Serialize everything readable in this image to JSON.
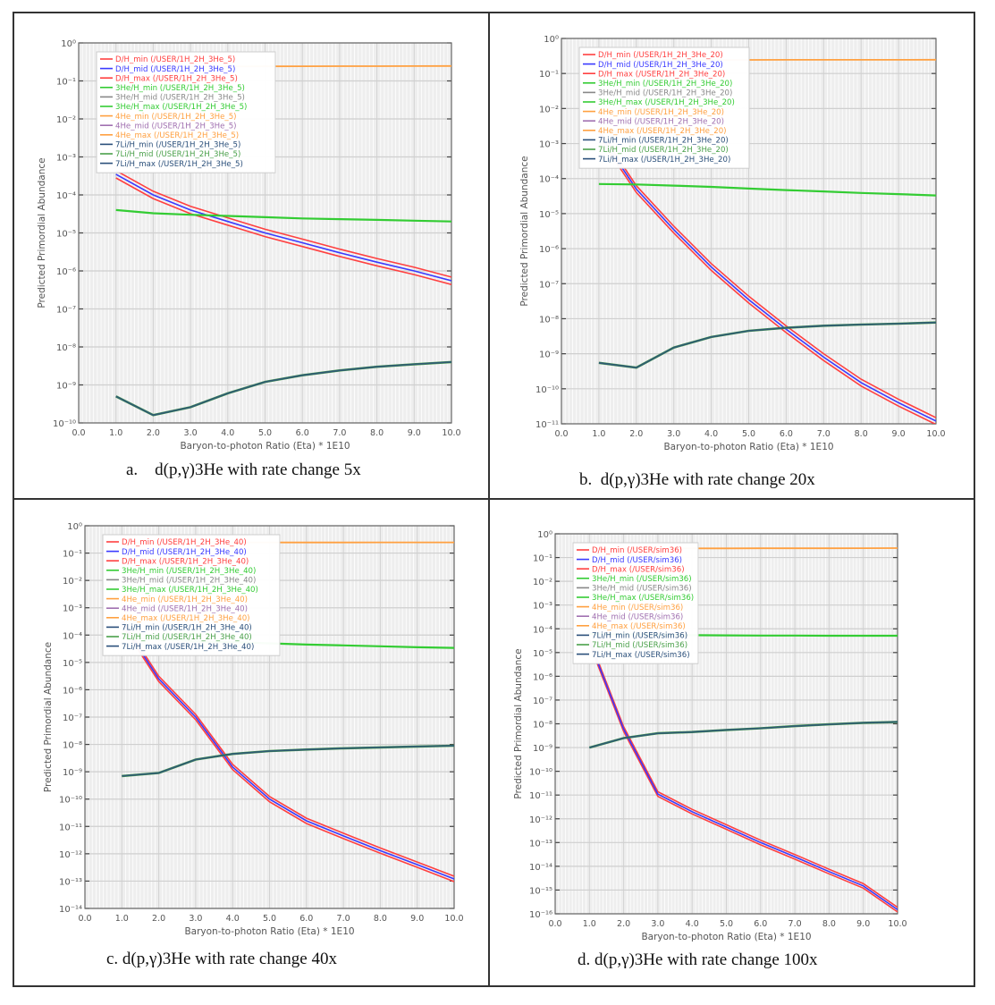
{
  "figure": {
    "captions": [
      "a.    d(p,γ)3He with rate change 5x",
      "b.  d(p,γ)3He with rate change 20x",
      "c. d(p,γ)3He with rate change 40x",
      "d. d(p,γ)3He with rate change 100x"
    ]
  },
  "colors": {
    "dh_min": "#ff4040",
    "dh_mid": "#3a3aff",
    "dh_max": "#ff4040",
    "he3_min": "#33cc33",
    "he3_mid": "#888888",
    "he3_max": "#33cc33",
    "he4_min": "#ffa040",
    "he4_mid": "#a070b0",
    "he4_max": "#ffa040",
    "li7_min": "#2a4f7a",
    "li7_mid": "#4aa04a",
    "li7_max": "#2a4f7a",
    "grid_bg": "#eeeeee"
  },
  "chart_data": [
    {
      "type": "line",
      "yscale": "log",
      "title": "d(p,γ)3He with rate change 5x",
      "xlabel": "Baryon-to-photon Ratio (Eta) * 1E10",
      "ylabel": "Predicted Primordial Abundance",
      "xlim": [
        0,
        10
      ],
      "ylim_exp": [
        -10,
        0
      ],
      "xticks": [
        "0.0",
        "1.0",
        "2.0",
        "3.0",
        "4.0",
        "5.0",
        "6.0",
        "7.0",
        "8.0",
        "9.0",
        "10.0"
      ],
      "yticks": [
        "10⁰",
        "10⁻¹",
        "10⁻²",
        "10⁻³",
        "10⁻⁴",
        "10⁻⁵",
        "10⁻⁶",
        "10⁻⁷",
        "10⁻⁸",
        "10⁻⁹",
        "10⁻¹⁰"
      ],
      "legend_position": "top-left",
      "legend": [
        "D/H_min (/USER/1H_2H_3He_5)",
        "D/H_mid (/USER/1H_2H_3He_5)",
        "D/H_max (/USER/1H_2H_3He_5)",
        "3He/H_min (/USER/1H_2H_3He_5)",
        "3He/H_mid (/USER/1H_2H_3He_5)",
        "3He/H_max (/USER/1H_2H_3He_5)",
        "4He_min (/USER/1H_2H_3He_5)",
        "4He_mid (/USER/1H_2H_3He_5)",
        "4He_max (/USER/1H_2H_3He_5)",
        "7Li/H_min (/USER/1H_2H_3He_5)",
        "7Li/H_mid (/USER/1H_2H_3He_5)",
        "7Li/H_max (/USER/1H_2H_3He_5)"
      ],
      "x": [
        1,
        2,
        3,
        4,
        5,
        6,
        7,
        8,
        9,
        10
      ],
      "series": [
        {
          "name": "D/H",
          "values": [
            0.00035,
            0.0001,
            4e-05,
            2e-05,
            1e-05,
            5.5e-06,
            3e-06,
            1.7e-06,
            1e-06,
            5.5e-07
          ]
        },
        {
          "name": "3He/H",
          "values": [
            4e-05,
            3.3e-05,
            3e-05,
            2.8e-05,
            2.6e-05,
            2.4e-05,
            2.3e-05,
            2.2e-05,
            2.1e-05,
            2e-05
          ]
        },
        {
          "name": "4He",
          "values": [
            0.23,
            0.235,
            0.238,
            0.24,
            0.242,
            0.243,
            0.244,
            0.245,
            0.246,
            0.247
          ]
        },
        {
          "name": "7Li/H",
          "values": [
            5e-10,
            1.6e-10,
            2.6e-10,
            6e-10,
            1.2e-09,
            1.8e-09,
            2.4e-09,
            3e-09,
            3.5e-09,
            4e-09
          ]
        }
      ]
    },
    {
      "type": "line",
      "yscale": "log",
      "title": "d(p,γ)3He with rate change 20x",
      "xlabel": "Baryon-to-photon Ratio (Eta) * 1E10",
      "ylabel": "Predicted Primordial Abundance",
      "xlim": [
        0,
        10
      ],
      "ylim_exp": [
        -11,
        0
      ],
      "xticks": [
        "0.0",
        "1.0",
        "2.0",
        "3.0",
        "4.0",
        "5.0",
        "6.0",
        "7.0",
        "8.0",
        "9.0",
        "10.0"
      ],
      "yticks": [
        "10⁰",
        "10⁻¹",
        "10⁻²",
        "10⁻³",
        "10⁻⁴",
        "10⁻⁵",
        "10⁻⁶",
        "10⁻⁷",
        "10⁻⁸",
        "10⁻⁹",
        "10⁻¹⁰",
        "10⁻¹¹"
      ],
      "legend_position": "top-left",
      "legend": [
        "D/H_min (/USER/1H_2H_3He_20)",
        "D/H_mid (/USER/1H_2H_3He_20)",
        "D/H_max (/USER/1H_2H_3He_20)",
        "3He/H_min (/USER/1H_2H_3He_20)",
        "3He/H_mid (/USER/1H_2H_3He_20)",
        "3He/H_max (/USER/1H_2H_3He_20)",
        "4He_min (/USER/1H_2H_3He_20)",
        "4He_mid (/USER/1H_2H_3He_20)",
        "4He_max (/USER/1H_2H_3He_20)",
        "7Li/H_min (/USER/1H_2H_3He_20)",
        "7Li/H_mid (/USER/1H_2H_3He_20)",
        "7Li/H_max (/USER/1H_2H_3He_20)"
      ],
      "x": [
        1,
        2,
        3,
        4,
        5,
        6,
        7,
        8,
        9,
        10
      ],
      "series": [
        {
          "name": "D/H",
          "values": [
            0.002,
            5e-05,
            3.5e-06,
            3e-07,
            3.5e-08,
            5e-09,
            8e-10,
            1.5e-10,
            4e-11,
            1.2e-11
          ]
        },
        {
          "name": "3He/H",
          "values": [
            7e-05,
            6.8e-05,
            6.3e-05,
            5.8e-05,
            5.2e-05,
            4.7e-05,
            4.3e-05,
            3.9e-05,
            3.6e-05,
            3.3e-05
          ]
        },
        {
          "name": "4He",
          "values": [
            0.24,
            0.24,
            0.242,
            0.243,
            0.244,
            0.245,
            0.245,
            0.246,
            0.246,
            0.247
          ]
        },
        {
          "name": "7Li/H",
          "values": [
            5.5e-10,
            4e-10,
            1.5e-09,
            3e-09,
            4.5e-09,
            5.5e-09,
            6.3e-09,
            6.8e-09,
            7.2e-09,
            7.8e-09
          ]
        }
      ]
    },
    {
      "type": "line",
      "yscale": "log",
      "title": "d(p,γ)3He with rate change 40x",
      "xlabel": "Baryon-to-photon Ratio (Eta) * 1E10",
      "ylabel": "Predicted Primordial Abundance",
      "xlim": [
        0,
        10
      ],
      "ylim_exp": [
        -14,
        0
      ],
      "xticks": [
        "0.0",
        "1.0",
        "2.0",
        "3.0",
        "4.0",
        "5.0",
        "6.0",
        "7.0",
        "8.0",
        "9.0",
        "10.0"
      ],
      "yticks": [
        "10⁰",
        "10⁻¹",
        "10⁻²",
        "10⁻³",
        "10⁻⁴",
        "10⁻⁵",
        "10⁻⁶",
        "10⁻⁷",
        "10⁻⁸",
        "10⁻⁹",
        "10⁻¹⁰",
        "10⁻¹¹",
        "10⁻¹²",
        "10⁻¹³",
        "10⁻¹⁴"
      ],
      "legend_position": "top-left",
      "legend": [
        "D/H_min (/USER/1H_2H_3He_40)",
        "D/H_mid (/USER/1H_2H_3He_40)",
        "D/H_max (/USER/1H_2H_3He_40)",
        "3He/H_min (/USER/1H_2H_3He_40)",
        "3He/H_mid (/USER/1H_2H_3He_40)",
        "3He/H_max (/USER/1H_2H_3He_40)",
        "4He_min (/USER/1H_2H_3He_40)",
        "4He_mid (/USER/1H_2H_3He_40)",
        "4He_max (/USER/1H_2H_3He_40)",
        "7Li/H_min (/USER/1H_2H_3He_40)",
        "7Li/H_mid (/USER/1H_2H_3He_40)",
        "7Li/H_max (/USER/1H_2H_3He_40)"
      ],
      "x": [
        1,
        2,
        3,
        4,
        5,
        6,
        7,
        8,
        9,
        10
      ],
      "series": [
        {
          "name": "D/H",
          "values": [
            0.0003,
            2.5e-06,
            1e-07,
            1.5e-09,
            1e-10,
            1.6e-11,
            4.5e-12,
            1.3e-12,
            4e-13,
            1.2e-13
          ]
        },
        {
          "name": "3He/H",
          "values": [
            8e-05,
            7e-05,
            6e-05,
            5.5e-05,
            5e-05,
            4.5e-05,
            4.2e-05,
            3.9e-05,
            3.6e-05,
            3.4e-05
          ]
        },
        {
          "name": "4He",
          "values": [
            0.24,
            0.24,
            0.242,
            0.243,
            0.244,
            0.245,
            0.245,
            0.246,
            0.246,
            0.247
          ]
        },
        {
          "name": "7Li/H",
          "values": [
            7e-10,
            9e-10,
            2.8e-09,
            4.5e-09,
            5.7e-09,
            6.5e-09,
            7.2e-09,
            7.8e-09,
            8.4e-09,
            9e-09
          ]
        }
      ]
    },
    {
      "type": "line",
      "yscale": "log",
      "title": "d(p,γ)3He with rate change 100x",
      "xlabel": "Baryon-to-photon Ratio (Eta) * 1E10",
      "ylabel": "Predicted Primordial Abundance",
      "xlim": [
        0,
        10
      ],
      "ylim_exp": [
        -16,
        0
      ],
      "xticks": [
        "0.0",
        "1.0",
        "2.0",
        "3.0",
        "4.0",
        "5.0",
        "6.0",
        "7.0",
        "8.0",
        "9.0",
        "10.0"
      ],
      "yticks": [
        "10⁰",
        "10⁻¹",
        "10⁻²",
        "10⁻³",
        "10⁻⁴",
        "10⁻⁵",
        "10⁻⁶",
        "10⁻⁷",
        "10⁻⁸",
        "10⁻⁹",
        "10⁻¹⁰",
        "10⁻¹¹",
        "10⁻¹²",
        "10⁻¹³",
        "10⁻¹⁴",
        "10⁻¹⁵",
        "10⁻¹⁶"
      ],
      "legend_position": "top-left",
      "legend": [
        "D/H_min (/USER/sim36)",
        "D/H_mid (/USER/sim36)",
        "D/H_max (/USER/sim36)",
        "3He/H_min (/USER/sim36)",
        "3He/H_mid (/USER/sim36)",
        "3He/H_max (/USER/sim36)",
        "4He_min (/USER/sim36)",
        "4He_mid (/USER/sim36)",
        "4He_max (/USER/sim36)",
        "7Li/H_min (/USER/sim36)",
        "7Li/H_mid (/USER/sim36)",
        "7Li/H_max (/USER/sim36)"
      ],
      "x": [
        1,
        2,
        3,
        4,
        5,
        6,
        7,
        8,
        9,
        10
      ],
      "series": [
        {
          "name": "D/H",
          "values": [
            3e-05,
            6e-09,
            1.1e-11,
            2e-12,
            4.5e-13,
            1e-13,
            2.5e-14,
            6e-15,
            1.5e-15,
            1.5e-16
          ]
        },
        {
          "name": "3He/H",
          "values": [
            6e-05,
            5.8e-05,
            5.6e-05,
            5.4e-05,
            5.3e-05,
            5.2e-05,
            5.2e-05,
            5.1e-05,
            5.1e-05,
            5.1e-05
          ]
        },
        {
          "name": "4He",
          "values": [
            0.24,
            0.24,
            0.242,
            0.243,
            0.244,
            0.245,
            0.245,
            0.246,
            0.247,
            0.25
          ]
        },
        {
          "name": "7Li/H",
          "values": [
            1e-09,
            2.5e-09,
            4e-09,
            4.5e-09,
            5.5e-09,
            6.5e-09,
            8e-09,
            9.5e-09,
            1.1e-08,
            1.2e-08
          ]
        }
      ]
    }
  ]
}
